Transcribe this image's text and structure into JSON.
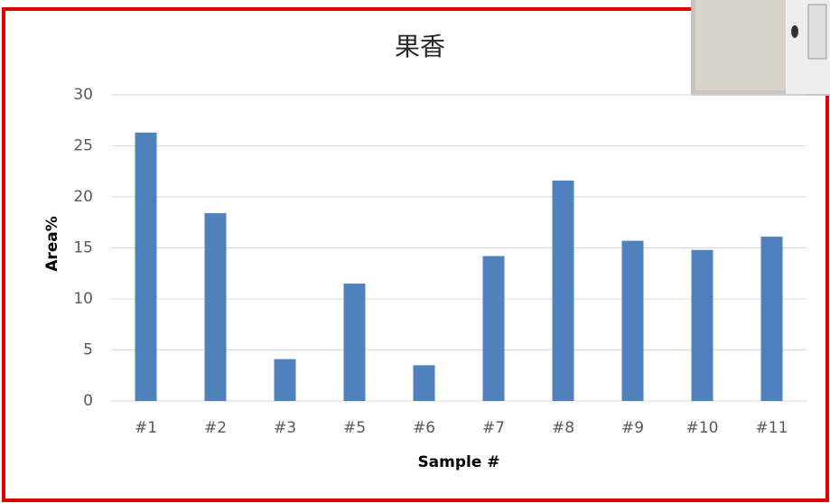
{
  "chart_data": {
    "type": "bar",
    "title": "果香",
    "x_label": "Sample #",
    "y_label": "Area%",
    "categories": [
      "#1",
      "#2",
      "#3",
      "#5",
      "#6",
      "#7",
      "#8",
      "#9",
      "#10",
      "#11"
    ],
    "values": [
      26.3,
      18.4,
      4.1,
      11.5,
      3.5,
      14.2,
      21.6,
      15.7,
      14.8,
      16.1
    ],
    "color": "#4f81bd",
    "ylim": [
      0,
      30
    ],
    "yticks": [
      0,
      5,
      10,
      15,
      20,
      25,
      30
    ],
    "grid": true
  }
}
